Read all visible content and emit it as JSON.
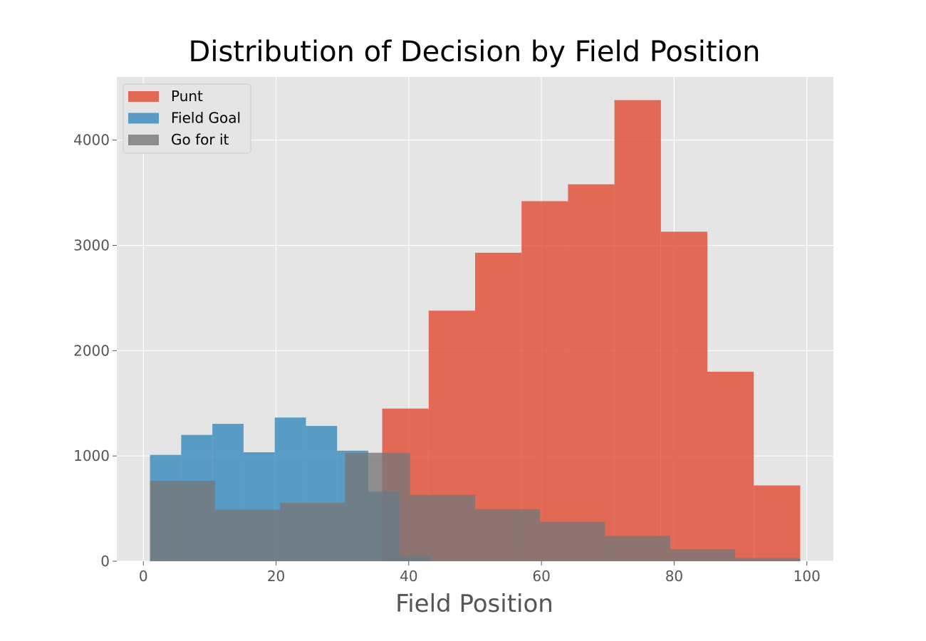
{
  "chart_data": {
    "type": "histogram",
    "title": "Distribution of Decision by Field Position",
    "xlabel": "Field Position",
    "ylabel": "",
    "xlim": [
      -4,
      104
    ],
    "ylim": [
      0,
      4600
    ],
    "xticks": [
      0,
      20,
      40,
      60,
      80,
      100
    ],
    "yticks": [
      0,
      1000,
      2000,
      3000,
      4000
    ],
    "grid": true,
    "legend_position": "upper-left",
    "series": [
      {
        "name": "Punt",
        "color": "#E24A33",
        "bin_edges": [
          36,
          43,
          50,
          57,
          64,
          71,
          78,
          85,
          92,
          99
        ],
        "counts": [
          1450,
          2380,
          2930,
          3420,
          3580,
          4380,
          3130,
          1800,
          720
        ]
      },
      {
        "name": "Field Goal",
        "color": "#348ABD",
        "bin_edges": [
          1,
          5.7,
          10.4,
          15.1,
          19.8,
          24.5,
          29.2,
          33.9,
          38.6,
          43.3
        ],
        "counts": [
          1010,
          1200,
          1305,
          1035,
          1365,
          1285,
          1050,
          660,
          50
        ]
      },
      {
        "name": "Go for it",
        "color": "#777777",
        "bin_edges": [
          1,
          10.8,
          20.6,
          30.4,
          40.2,
          50,
          59.8,
          69.6,
          79.4,
          89.2,
          99
        ],
        "counts": [
          765,
          490,
          555,
          1030,
          630,
          495,
          375,
          240,
          115,
          30
        ]
      }
    ]
  }
}
